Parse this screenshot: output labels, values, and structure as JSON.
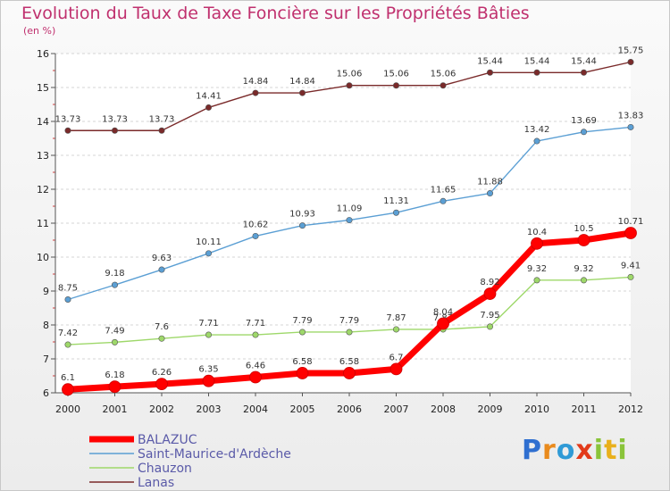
{
  "chart_data": {
    "type": "line",
    "title": "Evolution du Taux de Taxe Foncière sur les Propriétés Bâties",
    "unit_label": "(en %)",
    "xlabel": "",
    "ylabel": "",
    "categories": [
      "2000",
      "2001",
      "2002",
      "2003",
      "2004",
      "2005",
      "2006",
      "2007",
      "2008",
      "2009",
      "2010",
      "2011",
      "2012"
    ],
    "y_ticks": [
      6,
      7,
      8,
      9,
      10,
      11,
      12,
      13,
      14,
      15,
      16
    ],
    "ylim": [
      6,
      16
    ],
    "grid": "horizontal dashed",
    "legend_position": "bottom-left",
    "series": [
      {
        "name": "BALAZUC",
        "color": "#ff0000",
        "labels": [
          "6.1",
          "6.18",
          "6.26",
          "6.35",
          "6.46",
          "6.58",
          "6.58",
          "6.7",
          "8.04",
          "8.92",
          "10.4",
          "10.5",
          "10.71"
        ],
        "values": [
          6.1,
          6.18,
          6.26,
          6.35,
          6.46,
          6.58,
          6.58,
          6.7,
          8.04,
          8.92,
          10.4,
          10.5,
          10.71
        ]
      },
      {
        "name": "Saint-Maurice-d'Ardèche",
        "color": "#5b9fd4",
        "labels": [
          "8.75",
          "9.18",
          "9.63",
          "10.11",
          "10.62",
          "10.93",
          "11.09",
          "11.31",
          "11.65",
          "11.88",
          "13.42",
          "13.69",
          "13.83"
        ],
        "values": [
          8.75,
          9.18,
          9.63,
          10.11,
          10.62,
          10.93,
          11.09,
          11.31,
          11.65,
          11.88,
          13.42,
          13.69,
          13.83
        ]
      },
      {
        "name": "Chauzon",
        "color": "#9ed86a",
        "labels": [
          "7.42",
          "7.49",
          "7.6",
          "7.71",
          "7.71",
          "7.79",
          "7.79",
          "7.87",
          "7.87",
          "7.95",
          "9.32",
          "9.32",
          "9.41"
        ],
        "values": [
          7.42,
          7.49,
          7.6,
          7.71,
          7.71,
          7.79,
          7.79,
          7.87,
          7.87,
          7.95,
          9.32,
          9.32,
          9.41
        ]
      },
      {
        "name": "Lanas",
        "color": "#7a2a2a",
        "labels": [
          "13.73",
          "13.73",
          "13.73",
          "14.41",
          "14.84",
          "14.84",
          "15.06",
          "15.06",
          "15.06",
          "15.44",
          "15.44",
          "15.44",
          "15.75"
        ],
        "values": [
          13.73,
          13.73,
          13.73,
          14.41,
          14.84,
          14.84,
          15.06,
          15.06,
          15.06,
          15.44,
          15.44,
          15.44,
          15.75
        ]
      }
    ]
  },
  "logo": {
    "letters": [
      "P",
      "r",
      "o",
      "x",
      "i",
      "t",
      "i"
    ],
    "colors": [
      "#2f6fd0",
      "#e98a1c",
      "#2f9ad6",
      "#e23a1a",
      "#8ac43a",
      "#e9b01c",
      "#8ac43a"
    ]
  }
}
